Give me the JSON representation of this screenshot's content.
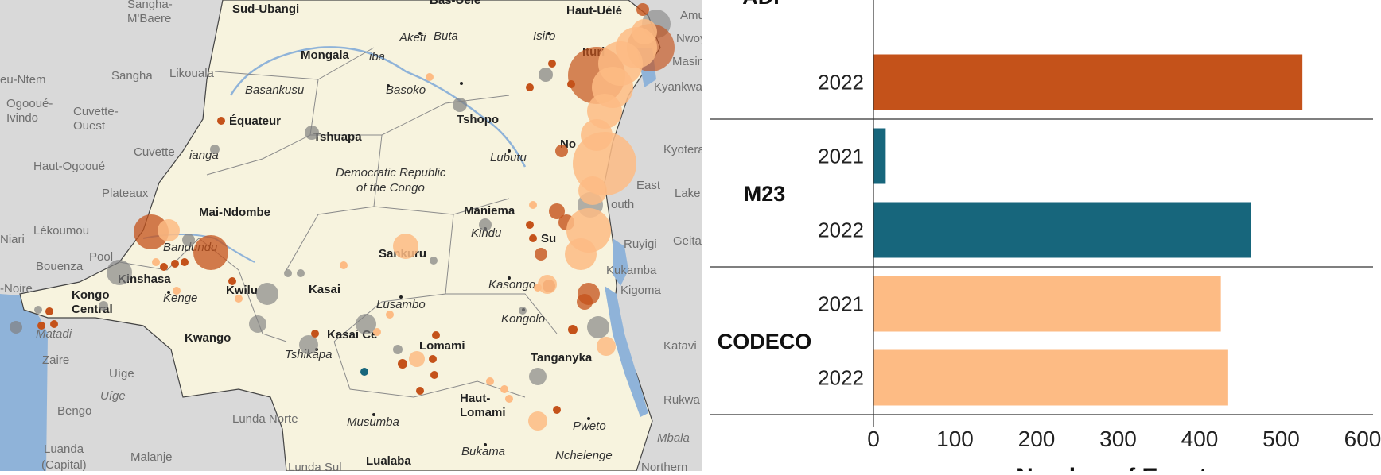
{
  "map": {
    "labels": {
      "sud_ubangi": "Sud-Ubangi",
      "sangha_mbaere": "Sangha-\nM'Baere",
      "bas_uele": "Bas-Uele",
      "haut_uele": "Haut-Uélé",
      "amu": "Amu",
      "nwoy": "Nwoy",
      "masind": "Masind",
      "aketi": "Aketi",
      "buta": "Buta",
      "isiro": "Isiro",
      "ituri": "Ituri",
      "mongala": "Mongala",
      "iba": "iba",
      "sangha": "Sangha",
      "likouala": "Likouala",
      "cuvette_ouest": "Cuvette-\nOuest",
      "ogooue_ivindo": "Ogooué-\nIvindo",
      "eu_ntem": "eu-Ntem",
      "basankusu": "Basankusu",
      "basoko": "Basoko",
      "equateur": "Équateur",
      "tshopo": "Tshopo",
      "tshuapa": "Tshuapa",
      "kyankwa": "Kyankwa",
      "cuvette": "Cuvette",
      "ianga": "ianga",
      "haut_ogooue": "Haut-Ogooué",
      "drc_line1": "Democratic Republic",
      "drc_line2": "of the Congo",
      "lubutu": "Lubutu",
      "no": "No",
      "kyotera": "Kyotera",
      "plateaux": "Plateaux",
      "east": "East",
      "lake": "Lake",
      "mai_ndombe": "Mai-Ndombe",
      "maniema": "Maniema",
      "south": "outh",
      "lekoumou": "Lékoumou",
      "niari": "Niari",
      "kindu": "Kindu",
      "su": "Su",
      "ruyigi": "Ruyigi",
      "geita": "Geita",
      "bandundu": "Bandundu",
      "sankuru": "Sankuru",
      "pool": "Pool",
      "bouenza": "Bouenza",
      "kinshasa": "Kinshasa",
      "noire": "-Noire",
      "kasongo": "Kasongo",
      "kikamba": "Kukamba",
      "kongo_central": "Kongo\nCentral",
      "kwilu": "Kwilu",
      "kasai": "Kasai",
      "kigoma": "Kigoma",
      "kenge": "Kenge",
      "lusambo": "Lusambo",
      "matadi": "Matadi",
      "kongolo": "Kongolo",
      "kwango": "Kwango",
      "kasai_central": "Kasai Ce",
      "lomami": "Lomami",
      "katavi": "Katavi",
      "tshikapa": "Tshikapa",
      "zaire": "Zaire",
      "tanganyka": "Tanganyka",
      "uige_prov": "Uíge",
      "uige": "Uíge",
      "haut_lomami": "Haut-\nLomami",
      "rukwa": "Rukwa",
      "bengo": "Bengo",
      "lunda_norte": "Lunda Norte",
      "musumba": "Musumba",
      "pweto": "Pweto",
      "mbala": "Mbala",
      "luanda": "Luanda",
      "capital": "(Capital)",
      "malanje": "Malanje",
      "lunda_sul": "Lunda Sul",
      "lualaba": "Lualaba",
      "bukama": "Bukama",
      "nchelenge": "Nchelenge",
      "northern": "Northern"
    }
  },
  "chart_data": {
    "type": "bar",
    "orientation": "horizontal",
    "title": "",
    "xlabel": "Number of Events",
    "ylabel": "",
    "xlim": [
      0,
      600
    ],
    "xticks": [
      0,
      100,
      200,
      300,
      400,
      500,
      600
    ],
    "groups": [
      {
        "name": "ADF",
        "color": "#c4521a",
        "bars": [
          {
            "year": "2022",
            "value": 526
          }
        ]
      },
      {
        "name": "M23",
        "color": "#17667c",
        "bars": [
          {
            "year": "2021",
            "value": 15
          },
          {
            "year": "2022",
            "value": 463
          }
        ]
      },
      {
        "name": "CODECO",
        "color": "#fdbb84",
        "bars": [
          {
            "year": "2021",
            "value": 426
          },
          {
            "year": "2022",
            "value": 435
          }
        ]
      }
    ]
  }
}
